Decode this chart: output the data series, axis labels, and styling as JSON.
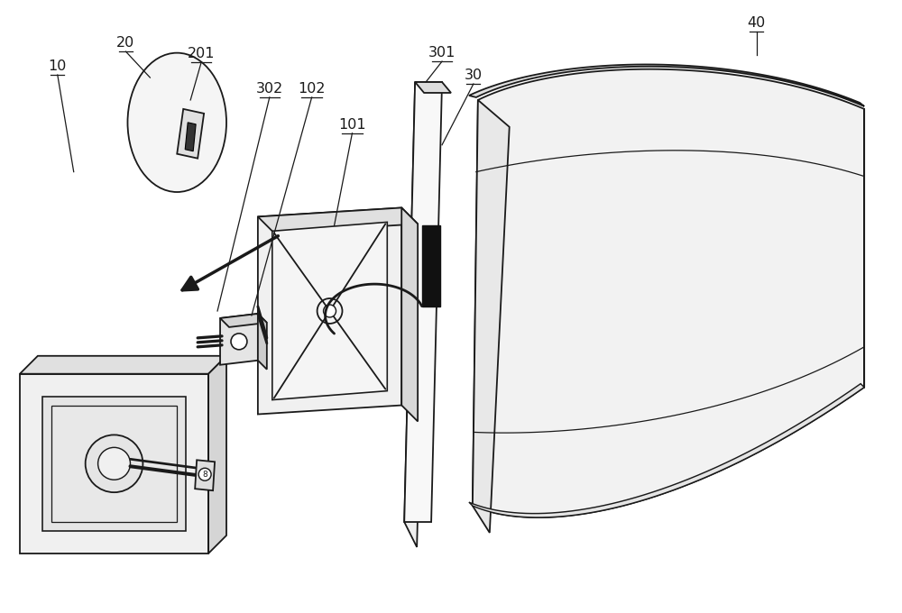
{
  "bg_color": "#ffffff",
  "line_color": "#1a1a1a",
  "figsize": [
    10.0,
    6.8
  ],
  "dpi": 100,
  "label_fontsize": 11.5
}
